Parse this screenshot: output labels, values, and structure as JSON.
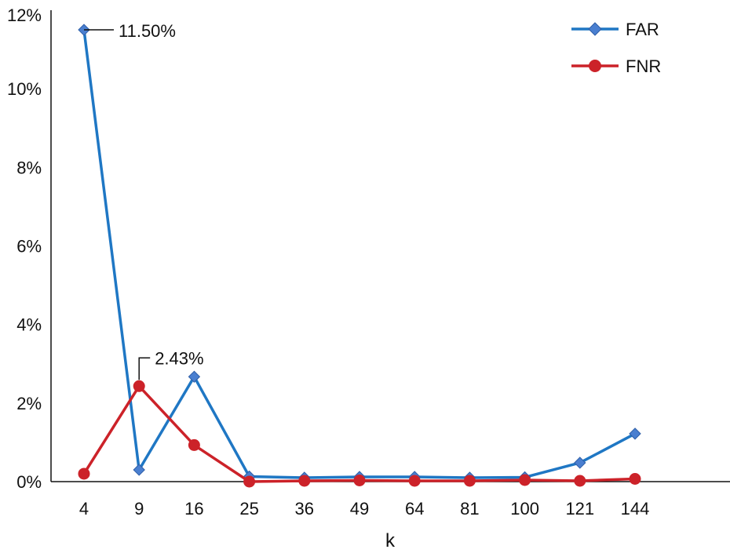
{
  "chart_data": {
    "type": "line",
    "title": "",
    "xlabel": "k",
    "ylabel": "",
    "categories": [
      "4",
      "9",
      "16",
      "25",
      "36",
      "49",
      "64",
      "81",
      "100",
      "121",
      "144"
    ],
    "yticks": [
      "0%",
      "2%",
      "4%",
      "6%",
      "8%",
      "10%",
      "12%"
    ],
    "ylim": [
      0,
      12
    ],
    "grid": false,
    "legend_position": "top-right",
    "series": [
      {
        "name": "FAR",
        "color": "#1f77c4",
        "marker": "diamond",
        "values": [
          11.5,
          0.3,
          2.67,
          0.13,
          0.1,
          0.12,
          0.12,
          0.1,
          0.11,
          0.48,
          1.22
        ]
      },
      {
        "name": "FNR",
        "color": "#cc2229",
        "marker": "circle",
        "values": [
          0.2,
          2.43,
          0.93,
          0.0,
          0.02,
          0.03,
          0.02,
          0.02,
          0.04,
          0.02,
          0.07
        ]
      }
    ],
    "annotations": [
      {
        "series": 0,
        "index": 0,
        "text": "11.50%"
      },
      {
        "series": 1,
        "index": 1,
        "text": "2.43%"
      }
    ]
  }
}
